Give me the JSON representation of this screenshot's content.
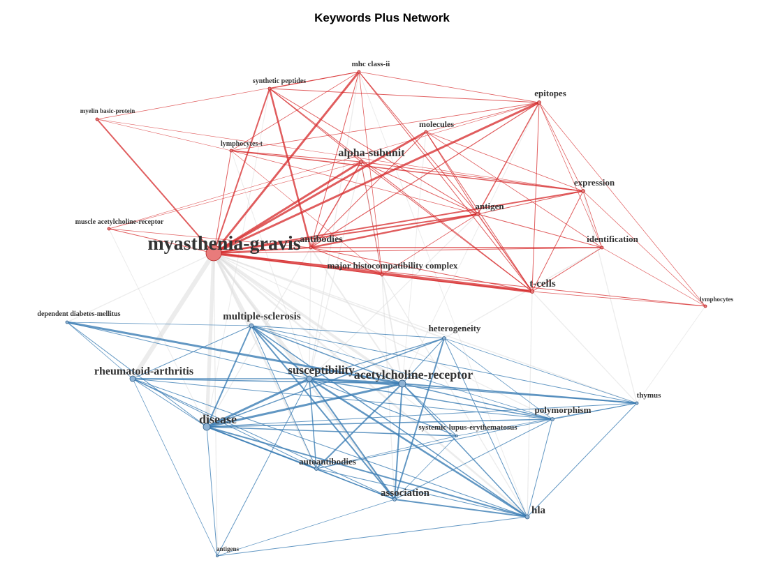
{
  "title": "Keywords Plus Network",
  "colors": {
    "cluster1": "#d62728",
    "cluster1_fill": "#e87b7b",
    "cluster2": "#3b7db4",
    "cluster2_fill": "#8fb3d4",
    "inter": "#dcdcdc",
    "label": "#333333"
  },
  "nodes": [
    {
      "id": "myasthenia-gravis",
      "label": "myasthenia-gravis",
      "cluster": 1,
      "size": 28
    },
    {
      "id": "mhc-class-ii",
      "label": "mhc class-ii",
      "cluster": 1,
      "size": 11
    },
    {
      "id": "synthetic-peptides",
      "label": "synthetic peptides",
      "cluster": 1,
      "size": 10
    },
    {
      "id": "myelin-basic-protein",
      "label": "myelin basic-protein",
      "cluster": 1,
      "size": 9
    },
    {
      "id": "epitopes",
      "label": "epitopes",
      "cluster": 1,
      "size": 13
    },
    {
      "id": "molecules",
      "label": "molecules",
      "cluster": 1,
      "size": 12
    },
    {
      "id": "lymphocytes-t",
      "label": "lymphocytes-t",
      "cluster": 1,
      "size": 10
    },
    {
      "id": "alpha-subunit",
      "label": "alpha-subunit",
      "cluster": 1,
      "size": 16
    },
    {
      "id": "expression",
      "label": "expression",
      "cluster": 1,
      "size": 13
    },
    {
      "id": "antigen",
      "label": "antigen",
      "cluster": 1,
      "size": 13
    },
    {
      "id": "muscle-achr",
      "label": "muscle acetylcholine-receptor",
      "cluster": 1,
      "size": 10
    },
    {
      "id": "antibodies",
      "label": "antibodies",
      "cluster": 1,
      "size": 14
    },
    {
      "id": "identification",
      "label": "identification",
      "cluster": 1,
      "size": 13
    },
    {
      "id": "mhc",
      "label": "major histocompatibility complex",
      "cluster": 1,
      "size": 13
    },
    {
      "id": "t-cells",
      "label": "t-cells",
      "cluster": 1,
      "size": 15
    },
    {
      "id": "lymphocytes",
      "label": "lymphocytes",
      "cluster": 1,
      "size": 9
    },
    {
      "id": "diabetes",
      "label": "dependent diabetes-mellitus",
      "cluster": 2,
      "size": 10
    },
    {
      "id": "multiple-sclerosis",
      "label": "multiple-sclerosis",
      "cluster": 2,
      "size": 15
    },
    {
      "id": "heterogeneity",
      "label": "heterogeneity",
      "cluster": 2,
      "size": 13
    },
    {
      "id": "rheumatoid-arthritis",
      "label": "rheumatoid-arthritis",
      "cluster": 2,
      "size": 16
    },
    {
      "id": "susceptibility",
      "label": "susceptibility",
      "cluster": 2,
      "size": 17
    },
    {
      "id": "achr",
      "label": "acetylcholine-receptor",
      "cluster": 2,
      "size": 18
    },
    {
      "id": "thymus",
      "label": "thymus",
      "cluster": 2,
      "size": 11
    },
    {
      "id": "polymorphism",
      "label": "polymorphism",
      "cluster": 2,
      "size": 13
    },
    {
      "id": "disease",
      "label": "disease",
      "cluster": 2,
      "size": 18
    },
    {
      "id": "sle",
      "label": "systemic-lupus-erythematosus",
      "cluster": 2,
      "size": 11
    },
    {
      "id": "autoantibodies",
      "label": "autoantibodies",
      "cluster": 2,
      "size": 13
    },
    {
      "id": "association",
      "label": "association",
      "cluster": 2,
      "size": 15
    },
    {
      "id": "hla",
      "label": "hla",
      "cluster": 2,
      "size": 15
    },
    {
      "id": "antigens",
      "label": "antigens",
      "cluster": 2,
      "size": 9
    }
  ],
  "edges": [
    [
      "myasthenia-gravis",
      "mhc-class-ii",
      3
    ],
    [
      "myasthenia-gravis",
      "synthetic-peptides",
      2
    ],
    [
      "myasthenia-gravis",
      "myelin-basic-protein",
      2
    ],
    [
      "myasthenia-gravis",
      "epitopes",
      3
    ],
    [
      "myasthenia-gravis",
      "molecules",
      3
    ],
    [
      "myasthenia-gravis",
      "lymphocytes-t",
      1
    ],
    [
      "myasthenia-gravis",
      "alpha-subunit",
      3
    ],
    [
      "myasthenia-gravis",
      "expression",
      2
    ],
    [
      "myasthenia-gravis",
      "antigen",
      2
    ],
    [
      "myasthenia-gravis",
      "muscle-achr",
      1
    ],
    [
      "myasthenia-gravis",
      "antibodies",
      2
    ],
    [
      "myasthenia-gravis",
      "identification",
      1
    ],
    [
      "myasthenia-gravis",
      "mhc",
      1
    ],
    [
      "myasthenia-gravis",
      "t-cells",
      4
    ],
    [
      "myasthenia-gravis",
      "lymphocytes",
      1
    ],
    [
      "synthetic-peptides",
      "antibodies",
      2.5
    ],
    [
      "synthetic-peptides",
      "mhc-class-ii",
      1
    ],
    [
      "synthetic-peptides",
      "t-cells",
      1
    ],
    [
      "synthetic-peptides",
      "alpha-subunit",
      1
    ],
    [
      "synthetic-peptides",
      "antigen",
      1
    ],
    [
      "synthetic-peptides",
      "epitopes",
      1
    ],
    [
      "mhc-class-ii",
      "antibodies",
      1
    ],
    [
      "mhc-class-ii",
      "antigen",
      1
    ],
    [
      "mhc-class-ii",
      "t-cells",
      1
    ],
    [
      "mhc-class-ii",
      "epitopes",
      0.8
    ],
    [
      "mhc-class-ii",
      "lymphocytes-t",
      0.8
    ],
    [
      "mhc-class-ii",
      "mhc",
      0.8
    ],
    [
      "myelin-basic-protein",
      "mhc-class-ii",
      0.7
    ],
    [
      "myelin-basic-protein",
      "expression",
      0.6
    ],
    [
      "myelin-basic-protein",
      "lymphocytes-t",
      0.6
    ],
    [
      "epitopes",
      "antigen",
      1.5
    ],
    [
      "epitopes",
      "antibodies",
      1.2
    ],
    [
      "epitopes",
      "expression",
      0.8
    ],
    [
      "epitopes",
      "lymphocytes-t",
      0.8
    ],
    [
      "epitopes",
      "t-cells",
      1
    ],
    [
      "epitopes",
      "identification",
      0.7
    ],
    [
      "epitopes",
      "lymphocytes",
      0.7
    ],
    [
      "epitopes",
      "molecules",
      0.8
    ],
    [
      "molecules",
      "antibodies",
      1
    ],
    [
      "molecules",
      "t-cells",
      1
    ],
    [
      "molecules",
      "antigen",
      1
    ],
    [
      "molecules",
      "expression",
      0.8
    ],
    [
      "molecules",
      "identification",
      0.8
    ],
    [
      "lymphocytes-t",
      "alpha-subunit",
      1
    ],
    [
      "lymphocytes-t",
      "expression",
      1.5
    ],
    [
      "lymphocytes-t",
      "antigen",
      0.8
    ],
    [
      "lymphocytes-t",
      "mhc",
      0.6
    ],
    [
      "alpha-subunit",
      "antigen",
      1
    ],
    [
      "alpha-subunit",
      "antibodies",
      1.5
    ],
    [
      "alpha-subunit",
      "t-cells",
      1
    ],
    [
      "alpha-subunit",
      "expression",
      1
    ],
    [
      "alpha-subunit",
      "mhc",
      0.8
    ],
    [
      "expression",
      "antigen",
      1
    ],
    [
      "expression",
      "t-cells",
      1
    ],
    [
      "expression",
      "identification",
      0.8
    ],
    [
      "expression",
      "lymphocytes",
      0.7
    ],
    [
      "antigen",
      "antibodies",
      2.5
    ],
    [
      "antigen",
      "t-cells",
      1.5
    ],
    [
      "antigen",
      "identification",
      1
    ],
    [
      "antigen",
      "mhc",
      0.8
    ],
    [
      "muscle-achr",
      "antibodies",
      0.8
    ],
    [
      "muscle-achr",
      "alpha-subunit",
      0.6
    ],
    [
      "muscle-achr",
      "epitopes",
      0.6
    ],
    [
      "antibodies",
      "identification",
      1.5
    ],
    [
      "antibodies",
      "t-cells",
      1
    ],
    [
      "antibodies",
      "mhc",
      1
    ],
    [
      "identification",
      "t-cells",
      1
    ],
    [
      "identification",
      "lymphocytes",
      0.7
    ],
    [
      "mhc",
      "t-cells",
      1
    ],
    [
      "t-cells",
      "lymphocytes",
      0.8
    ],
    [
      "diabetes",
      "multiple-sclerosis",
      0.8
    ],
    [
      "diabetes",
      "rheumatoid-arthritis",
      0.8
    ],
    [
      "diabetes",
      "susceptibility",
      1
    ],
    [
      "diabetes",
      "achr",
      3
    ],
    [
      "diabetes",
      "disease",
      1
    ],
    [
      "multiple-sclerosis",
      "disease",
      2
    ],
    [
      "multiple-sclerosis",
      "susceptibility",
      2
    ],
    [
      "multiple-sclerosis",
      "achr",
      1.5
    ],
    [
      "multiple-sclerosis",
      "association",
      2
    ],
    [
      "multiple-sclerosis",
      "heterogeneity",
      1
    ],
    [
      "multiple-sclerosis",
      "rheumatoid-arthritis",
      1
    ],
    [
      "multiple-sclerosis",
      "hla",
      1.5
    ],
    [
      "multiple-sclerosis",
      "autoantibodies",
      1
    ],
    [
      "multiple-sclerosis",
      "polymorphism",
      0.8
    ],
    [
      "multiple-sclerosis",
      "thymus",
      1
    ],
    [
      "heterogeneity",
      "disease",
      1.5
    ],
    [
      "heterogeneity",
      "susceptibility",
      1.2
    ],
    [
      "heterogeneity",
      "association",
      2
    ],
    [
      "heterogeneity",
      "achr",
      1
    ],
    [
      "heterogeneity",
      "hla",
      1
    ],
    [
      "heterogeneity",
      "thymus",
      0.8
    ],
    [
      "heterogeneity",
      "polymorphism",
      0.8
    ],
    [
      "rheumatoid-arthritis",
      "susceptibility",
      1.5
    ],
    [
      "rheumatoid-arthritis",
      "achr",
      1.5
    ],
    [
      "rheumatoid-arthritis",
      "disease",
      1
    ],
    [
      "rheumatoid-arthritis",
      "polymorphism",
      1
    ],
    [
      "rheumatoid-arthritis",
      "autoantibodies",
      1
    ],
    [
      "rheumatoid-arthritis",
      "association",
      1
    ],
    [
      "rheumatoid-arthritis",
      "antigens",
      0.8
    ],
    [
      "rheumatoid-arthritis",
      "hla",
      1
    ],
    [
      "susceptibility",
      "achr",
      3
    ],
    [
      "susceptibility",
      "disease",
      3
    ],
    [
      "susceptibility",
      "hla",
      2.5
    ],
    [
      "susceptibility",
      "association",
      2
    ],
    [
      "susceptibility",
      "polymorphism",
      1.5
    ],
    [
      "susceptibility",
      "autoantibodies",
      1.5
    ],
    [
      "susceptibility",
      "sle",
      1.2
    ],
    [
      "susceptibility",
      "thymus",
      1.2
    ],
    [
      "susceptibility",
      "antigens",
      1
    ],
    [
      "achr",
      "disease",
      3
    ],
    [
      "achr",
      "autoantibodies",
      2
    ],
    [
      "achr",
      "association",
      2
    ],
    [
      "achr",
      "hla",
      1.5
    ],
    [
      "achr",
      "thymus",
      2
    ],
    [
      "achr",
      "polymorphism",
      1.5
    ],
    [
      "achr",
      "sle",
      1
    ],
    [
      "disease",
      "autoantibodies",
      2
    ],
    [
      "disease",
      "association",
      1.5
    ],
    [
      "disease",
      "hla",
      2
    ],
    [
      "disease",
      "polymorphism",
      1.5
    ],
    [
      "disease",
      "sle",
      1.5
    ],
    [
      "disease",
      "antigens",
      1
    ],
    [
      "disease",
      "thymus",
      1
    ],
    [
      "autoantibodies",
      "association",
      1
    ],
    [
      "autoantibodies",
      "hla",
      1
    ],
    [
      "autoantibodies",
      "polymorphism",
      1
    ],
    [
      "autoantibodies",
      "sle",
      0.8
    ],
    [
      "association",
      "hla",
      2
    ],
    [
      "association",
      "polymorphism",
      1
    ],
    [
      "association",
      "sle",
      0.8
    ],
    [
      "association",
      "antigens",
      0.8
    ],
    [
      "hla",
      "polymorphism",
      1
    ],
    [
      "hla",
      "antigens",
      1
    ],
    [
      "hla",
      "thymus",
      1
    ],
    [
      "polymorphism",
      "thymus",
      1
    ],
    [
      "sle",
      "thymus",
      0.8
    ],
    [
      "myasthenia-gravis",
      "rheumatoid-arthritis",
      5
    ],
    [
      "myasthenia-gravis",
      "disease",
      4
    ],
    [
      "myasthenia-gravis",
      "multiple-sclerosis",
      3
    ],
    [
      "myasthenia-gravis",
      "susceptibility",
      3
    ],
    [
      "myasthenia-gravis",
      "achr",
      3
    ],
    [
      "myasthenia-gravis",
      "association",
      2
    ],
    [
      "myasthenia-gravis",
      "autoantibodies",
      2
    ],
    [
      "myasthenia-gravis",
      "hla",
      2
    ],
    [
      "myasthenia-gravis",
      "diabetes",
      1
    ],
    [
      "myasthenia-gravis",
      "heterogeneity",
      1.5
    ],
    [
      "myasthenia-gravis",
      "sle",
      1
    ],
    [
      "myasthenia-gravis",
      "polymorphism",
      1
    ],
    [
      "myasthenia-gravis",
      "thymus",
      1
    ],
    [
      "myasthenia-gravis",
      "antigens",
      1
    ],
    [
      "antibodies",
      "achr",
      1.5
    ],
    [
      "antibodies",
      "susceptibility",
      1
    ],
    [
      "antibodies",
      "disease",
      1
    ],
    [
      "alpha-subunit",
      "achr",
      1.5
    ],
    [
      "alpha-subunit",
      "susceptibility",
      1
    ],
    [
      "t-cells",
      "hla",
      1
    ],
    [
      "t-cells",
      "thymus",
      1
    ],
    [
      "antigen",
      "susceptibility",
      1
    ],
    [
      "mhc",
      "hla",
      1
    ],
    [
      "mhc",
      "association",
      1
    ],
    [
      "expression",
      "thymus",
      1
    ],
    [
      "identification",
      "heterogeneity",
      1
    ],
    [
      "lymphocytes",
      "thymus",
      0.8
    ],
    [
      "muscle-achr",
      "disease",
      0.8
    ],
    [
      "epitopes",
      "achr",
      0.8
    ],
    [
      "molecules",
      "achr",
      0.8
    ],
    [
      "mhc-class-ii",
      "hla",
      0.8
    ],
    [
      "mhc-class-ii",
      "susceptibility",
      1
    ],
    [
      "synthetic-peptides",
      "disease",
      0.8
    ],
    [
      "lymphocytes-t",
      "susceptibility",
      0.8
    ]
  ]
}
